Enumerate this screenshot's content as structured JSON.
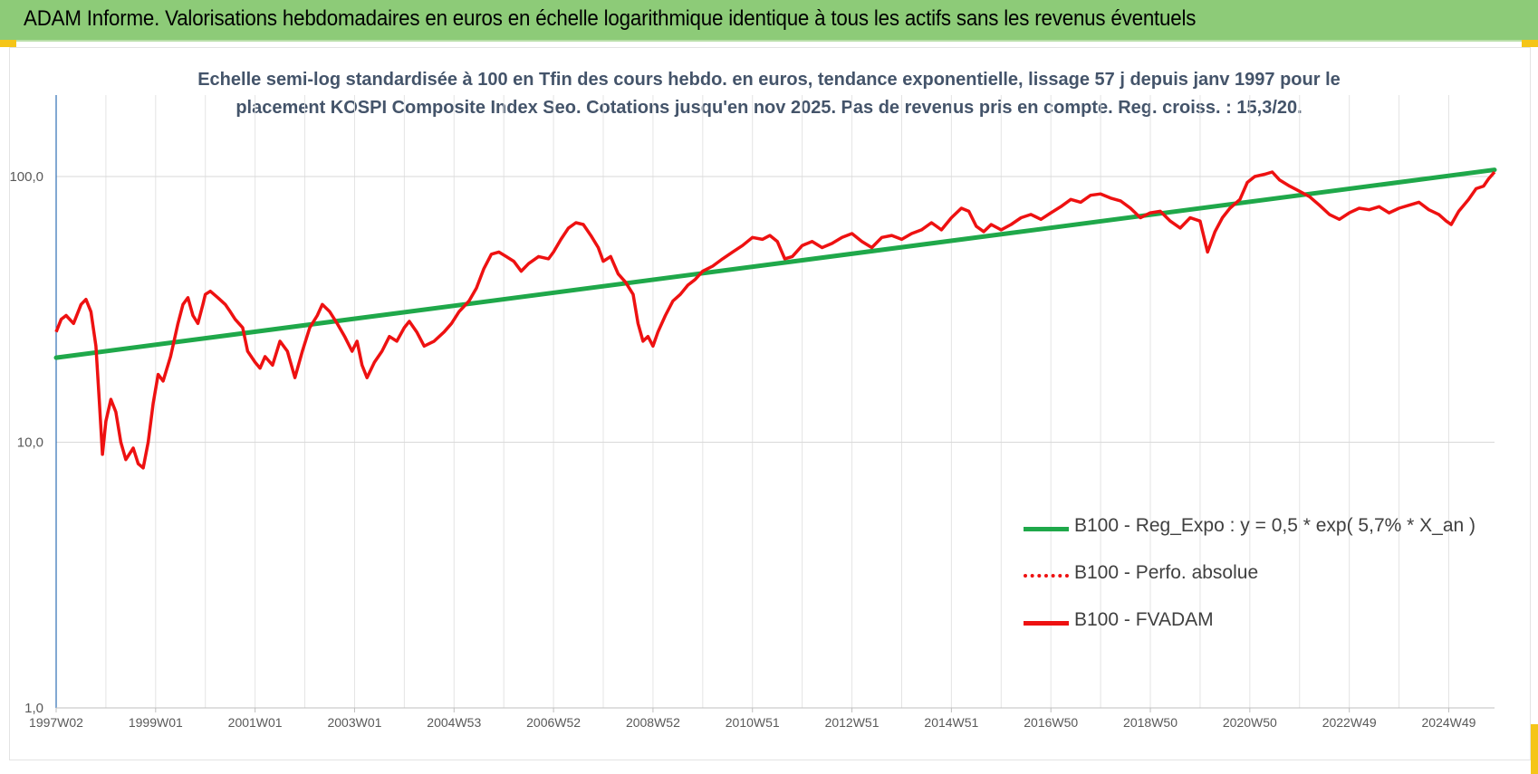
{
  "header": {
    "title": "ADAM Informe. Valorisations hebdomadaires en euros en échelle logarithmique identique à tous les actifs sans les revenus éventuels"
  },
  "colors": {
    "header_bg": "#8dcb78",
    "trend": "#1fa84a",
    "series": "#ee1111",
    "corner_accent": "#f5c518"
  },
  "chart_data": {
    "type": "line",
    "title_lines": [
      "Echelle semi-log standardisée à 100 en Tfin des cours hebdo. en euros, tendance exponentielle, lissage 57 j depuis janv 1997 pour le",
      "placement KOSPI Composite Index Seo. Cotations jusqu'en nov 2025. Pas de revenus pris en compte. Reg. croiss. : 15,3/20."
    ],
    "y_scale": "log",
    "ylim": [
      1,
      200
    ],
    "y_ticks": [
      "1,0",
      "10,0",
      "100,0"
    ],
    "y_tick_values": [
      1,
      10,
      100
    ],
    "xlim": [
      1997.0,
      2025.92
    ],
    "x_ticks": [
      "1997W02",
      "1999W01",
      "2001W01",
      "2003W01",
      "2004W53",
      "2006W52",
      "2008W52",
      "2010W51",
      "2012W51",
      "2014W51",
      "2016W50",
      "2018W50",
      "2020W50",
      "2022W49",
      "2024W49"
    ],
    "x_tick_years": [
      1997.0,
      1999.0,
      2001.0,
      2003.0,
      2005.0,
      2007.0,
      2009.0,
      2011.0,
      2013.0,
      2015.0,
      2017.0,
      2019.0,
      2021.0,
      2023.0,
      2025.0
    ],
    "grid": true,
    "legend_position": "right-center",
    "series": [
      {
        "name": "B100 - Reg_Expo : y = 0,5 * exp( 5,7% *  X_an )",
        "style": "solid-green",
        "points": [
          [
            1997.0,
            20.8
          ],
          [
            2025.92,
            106
          ]
        ]
      },
      {
        "name": "B100 - Perfo. absolue",
        "style": "dotted-red",
        "points": []
      },
      {
        "name": "B100 - FVADAM",
        "style": "solid-red",
        "points": [
          [
            1997.0,
            26
          ],
          [
            1997.1,
            29
          ],
          [
            1997.2,
            30
          ],
          [
            1997.35,
            28
          ],
          [
            1997.5,
            33
          ],
          [
            1997.6,
            34.5
          ],
          [
            1997.7,
            31
          ],
          [
            1997.8,
            23
          ],
          [
            1997.87,
            14
          ],
          [
            1997.93,
            9
          ],
          [
            1998.0,
            12
          ],
          [
            1998.1,
            14.5
          ],
          [
            1998.2,
            13
          ],
          [
            1998.3,
            10
          ],
          [
            1998.4,
            8.6
          ],
          [
            1998.55,
            9.5
          ],
          [
            1998.65,
            8.3
          ],
          [
            1998.75,
            8
          ],
          [
            1998.85,
            10
          ],
          [
            1998.95,
            14
          ],
          [
            1999.05,
            18
          ],
          [
            1999.15,
            17
          ],
          [
            1999.3,
            21
          ],
          [
            1999.45,
            28
          ],
          [
            1999.55,
            33
          ],
          [
            1999.65,
            35
          ],
          [
            1999.75,
            30
          ],
          [
            1999.85,
            28
          ],
          [
            1999.95,
            33
          ],
          [
            2000.0,
            36
          ],
          [
            2000.1,
            37
          ],
          [
            2000.25,
            35
          ],
          [
            2000.4,
            33
          ],
          [
            2000.5,
            31
          ],
          [
            2000.6,
            29
          ],
          [
            2000.75,
            27
          ],
          [
            2000.85,
            22
          ],
          [
            2001.0,
            20
          ],
          [
            2001.1,
            19
          ],
          [
            2001.2,
            21
          ],
          [
            2001.35,
            19.5
          ],
          [
            2001.5,
            24
          ],
          [
            2001.65,
            22
          ],
          [
            2001.8,
            17.5
          ],
          [
            2001.95,
            22
          ],
          [
            2002.1,
            27
          ],
          [
            2002.25,
            30
          ],
          [
            2002.35,
            33
          ],
          [
            2002.5,
            31
          ],
          [
            2002.65,
            28
          ],
          [
            2002.8,
            25
          ],
          [
            2002.95,
            22
          ],
          [
            2003.05,
            24
          ],
          [
            2003.15,
            19.5
          ],
          [
            2003.25,
            17.5
          ],
          [
            2003.4,
            20
          ],
          [
            2003.55,
            22
          ],
          [
            2003.7,
            25
          ],
          [
            2003.85,
            24
          ],
          [
            2004.0,
            27
          ],
          [
            2004.1,
            28.5
          ],
          [
            2004.25,
            26
          ],
          [
            2004.4,
            23
          ],
          [
            2004.6,
            24
          ],
          [
            2004.8,
            26
          ],
          [
            2004.95,
            28
          ],
          [
            2005.1,
            31
          ],
          [
            2005.3,
            34
          ],
          [
            2005.45,
            38
          ],
          [
            2005.6,
            45
          ],
          [
            2005.75,
            51
          ],
          [
            2005.9,
            52
          ],
          [
            2006.05,
            50
          ],
          [
            2006.2,
            48
          ],
          [
            2006.35,
            44
          ],
          [
            2006.5,
            47
          ],
          [
            2006.7,
            50
          ],
          [
            2006.9,
            49
          ],
          [
            2007.0,
            52
          ],
          [
            2007.15,
            58
          ],
          [
            2007.3,
            64
          ],
          [
            2007.45,
            67
          ],
          [
            2007.6,
            66
          ],
          [
            2007.75,
            60
          ],
          [
            2007.9,
            54
          ],
          [
            2008.0,
            48
          ],
          [
            2008.15,
            50
          ],
          [
            2008.3,
            43
          ],
          [
            2008.45,
            40
          ],
          [
            2008.6,
            36
          ],
          [
            2008.7,
            28
          ],
          [
            2008.8,
            24
          ],
          [
            2008.9,
            25
          ],
          [
            2009.0,
            23
          ],
          [
            2009.1,
            26
          ],
          [
            2009.25,
            30
          ],
          [
            2009.4,
            34
          ],
          [
            2009.55,
            36
          ],
          [
            2009.7,
            39
          ],
          [
            2009.85,
            41
          ],
          [
            2010.0,
            44
          ],
          [
            2010.2,
            46
          ],
          [
            2010.4,
            49
          ],
          [
            2010.6,
            52
          ],
          [
            2010.8,
            55
          ],
          [
            2011.0,
            59
          ],
          [
            2011.2,
            58
          ],
          [
            2011.35,
            60
          ],
          [
            2011.5,
            57
          ],
          [
            2011.65,
            49
          ],
          [
            2011.8,
            50
          ],
          [
            2012.0,
            55
          ],
          [
            2012.2,
            57
          ],
          [
            2012.4,
            54
          ],
          [
            2012.6,
            56
          ],
          [
            2012.8,
            59
          ],
          [
            2013.0,
            61
          ],
          [
            2013.2,
            57
          ],
          [
            2013.4,
            54
          ],
          [
            2013.6,
            59
          ],
          [
            2013.8,
            60
          ],
          [
            2014.0,
            58
          ],
          [
            2014.2,
            61
          ],
          [
            2014.4,
            63
          ],
          [
            2014.6,
            67
          ],
          [
            2014.8,
            63
          ],
          [
            2015.0,
            70
          ],
          [
            2015.2,
            76
          ],
          [
            2015.35,
            74
          ],
          [
            2015.5,
            65
          ],
          [
            2015.65,
            62
          ],
          [
            2015.8,
            66
          ],
          [
            2016.0,
            63
          ],
          [
            2016.2,
            66
          ],
          [
            2016.4,
            70
          ],
          [
            2016.6,
            72
          ],
          [
            2016.8,
            69
          ],
          [
            2017.0,
            73
          ],
          [
            2017.2,
            77
          ],
          [
            2017.4,
            82
          ],
          [
            2017.6,
            80
          ],
          [
            2017.8,
            85
          ],
          [
            2018.0,
            86
          ],
          [
            2018.2,
            83
          ],
          [
            2018.4,
            81
          ],
          [
            2018.6,
            76
          ],
          [
            2018.8,
            70
          ],
          [
            2019.0,
            73
          ],
          [
            2019.2,
            74
          ],
          [
            2019.4,
            68
          ],
          [
            2019.6,
            64
          ],
          [
            2019.8,
            70
          ],
          [
            2020.0,
            68
          ],
          [
            2020.15,
            52
          ],
          [
            2020.3,
            62
          ],
          [
            2020.45,
            70
          ],
          [
            2020.6,
            76
          ],
          [
            2020.8,
            82
          ],
          [
            2020.95,
            95
          ],
          [
            2021.1,
            100
          ],
          [
            2021.3,
            102
          ],
          [
            2021.45,
            104
          ],
          [
            2021.6,
            97
          ],
          [
            2021.8,
            92
          ],
          [
            2022.0,
            88
          ],
          [
            2022.2,
            84
          ],
          [
            2022.4,
            78
          ],
          [
            2022.6,
            72
          ],
          [
            2022.8,
            69
          ],
          [
            2023.0,
            73
          ],
          [
            2023.2,
            76
          ],
          [
            2023.4,
            75
          ],
          [
            2023.6,
            77
          ],
          [
            2023.8,
            73
          ],
          [
            2024.0,
            76
          ],
          [
            2024.2,
            78
          ],
          [
            2024.4,
            80
          ],
          [
            2024.6,
            75
          ],
          [
            2024.8,
            72
          ],
          [
            2024.95,
            68
          ],
          [
            2025.05,
            66
          ],
          [
            2025.2,
            74
          ],
          [
            2025.4,
            82
          ],
          [
            2025.55,
            90
          ],
          [
            2025.7,
            92
          ],
          [
            2025.8,
            98
          ],
          [
            2025.92,
            104
          ]
        ]
      }
    ]
  }
}
